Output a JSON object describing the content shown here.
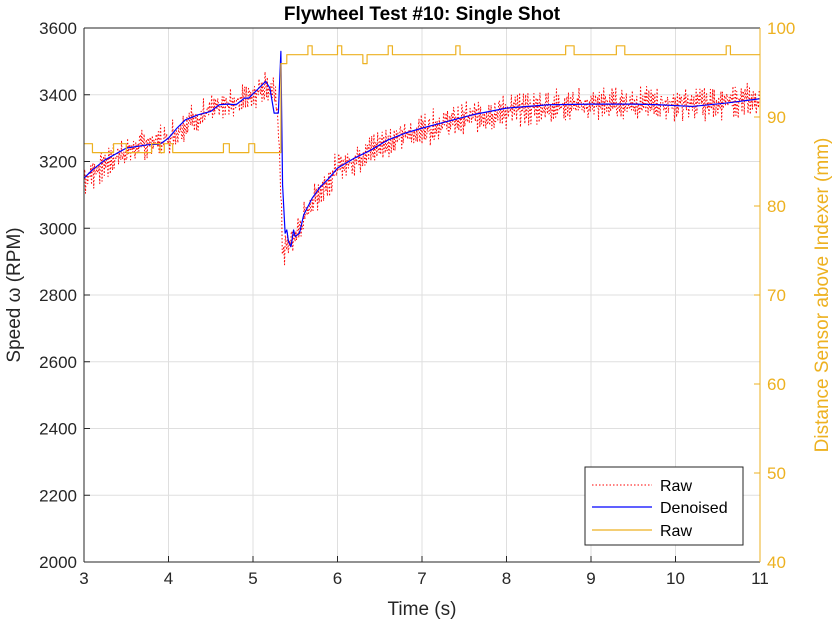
{
  "chart_data": {
    "type": "line",
    "title": "Flywheel Test #10: Single Shot",
    "xlabel": "Time (s)",
    "ylabel_left": "Speed ω (RPM)",
    "ylabel_right": "Distance Sensor above Indexer (mm)",
    "xlim": [
      3,
      11
    ],
    "ylim_left": [
      2000,
      3600
    ],
    "ylim_right": [
      40,
      100
    ],
    "x_ticks": [
      "3",
      "4",
      "5",
      "6",
      "7",
      "8",
      "9",
      "10",
      "11"
    ],
    "y_left_ticks": [
      "2000",
      "2200",
      "2400",
      "2600",
      "2800",
      "3000",
      "3200",
      "3400",
      "3600"
    ],
    "y_right_ticks": [
      "40",
      "50",
      "60",
      "70",
      "80",
      "90",
      "100"
    ],
    "grid": true,
    "legend_position": "bottom-right",
    "colors": {
      "raw_speed": "#ff0000",
      "denoised": "#0000ff",
      "raw_distance": "#edb120",
      "right_axis": "#edb120"
    },
    "series": [
      {
        "name": "Raw",
        "axis": "left",
        "style": "dotted",
        "color": "#ff0000",
        "x": [
          3.0,
          3.25,
          3.5,
          3.75,
          4.0,
          4.25,
          4.5,
          4.75,
          5.0,
          5.15,
          5.25,
          5.3,
          5.35,
          5.45,
          5.55,
          5.7,
          6.0,
          6.5,
          7.0,
          7.5,
          8.0,
          8.5,
          9.0,
          9.5,
          10.0,
          10.5,
          11.0
        ],
        "y": [
          3150,
          3195,
          3230,
          3255,
          3270,
          3320,
          3350,
          3375,
          3405,
          3430,
          3400,
          3330,
          2930,
          2960,
          3000,
          3080,
          3180,
          3250,
          3295,
          3330,
          3350,
          3365,
          3370,
          3375,
          3372,
          3375,
          3385
        ],
        "noise_amplitude": 40
      },
      {
        "name": "Denoised",
        "axis": "left",
        "style": "solid",
        "color": "#0000ff",
        "x": [
          3.0,
          3.1,
          3.25,
          3.5,
          3.75,
          3.9,
          4.0,
          4.1,
          4.2,
          4.35,
          4.5,
          4.6,
          4.7,
          4.8,
          4.9,
          4.95,
          5.05,
          5.15,
          5.2,
          5.25,
          5.3,
          5.33,
          5.35,
          5.38,
          5.4,
          5.42,
          5.45,
          5.48,
          5.5,
          5.55,
          5.6,
          5.7,
          5.8,
          5.9,
          6.0,
          6.2,
          6.4,
          6.6,
          6.8,
          7.0,
          7.3,
          7.6,
          8.0,
          8.5,
          9.0,
          9.5,
          9.8,
          10.2,
          10.6,
          11.0
        ],
        "y": [
          3150,
          3175,
          3205,
          3240,
          3250,
          3252,
          3270,
          3300,
          3325,
          3340,
          3350,
          3370,
          3372,
          3370,
          3390,
          3390,
          3415,
          3440,
          3420,
          3345,
          3345,
          3530,
          3130,
          2985,
          2995,
          2960,
          2945,
          2995,
          2975,
          2985,
          3040,
          3090,
          3125,
          3150,
          3180,
          3210,
          3235,
          3265,
          3285,
          3300,
          3320,
          3340,
          3360,
          3370,
          3372,
          3372,
          3370,
          3365,
          3375,
          3388
        ]
      },
      {
        "name": "Raw",
        "axis": "right",
        "style": "step",
        "color": "#edb120",
        "x": [
          3.0,
          3.1,
          3.1,
          3.35,
          3.35,
          3.5,
          3.5,
          3.8,
          3.8,
          3.9,
          3.9,
          3.95,
          3.95,
          4.05,
          4.05,
          4.2,
          4.2,
          4.65,
          4.65,
          4.72,
          4.72,
          4.95,
          4.95,
          5.02,
          5.02,
          5.33,
          5.33,
          5.4,
          5.4,
          5.65,
          5.65,
          5.7,
          5.7,
          6.0,
          6.0,
          6.05,
          6.05,
          6.3,
          6.3,
          6.35,
          6.35,
          6.6,
          6.6,
          6.65,
          6.65,
          7.4,
          7.4,
          7.45,
          7.45,
          8.7,
          8.7,
          8.8,
          8.8,
          9.3,
          9.3,
          9.4,
          9.4,
          10.6,
          10.6,
          10.65,
          10.65,
          11.0
        ],
        "y": [
          87,
          87,
          86,
          86,
          87,
          87,
          86,
          86,
          87,
          87,
          86,
          86,
          87,
          87,
          86,
          86,
          86,
          86,
          87,
          87,
          86,
          86,
          87,
          87,
          86,
          86,
          96,
          96,
          97,
          97,
          98,
          98,
          97,
          97,
          98,
          98,
          97,
          97,
          96,
          96,
          97,
          97,
          98,
          98,
          97,
          97,
          98,
          98,
          97,
          97,
          98,
          98,
          97,
          97,
          98,
          98,
          97,
          97,
          98,
          98,
          97,
          97
        ]
      }
    ]
  },
  "legend": {
    "items": [
      {
        "label": "Raw",
        "style": "dotted",
        "color": "#ff0000"
      },
      {
        "label": "Denoised",
        "style": "solid",
        "color": "#0000ff"
      },
      {
        "label": "Raw",
        "style": "solid",
        "color": "#edb120"
      }
    ]
  }
}
